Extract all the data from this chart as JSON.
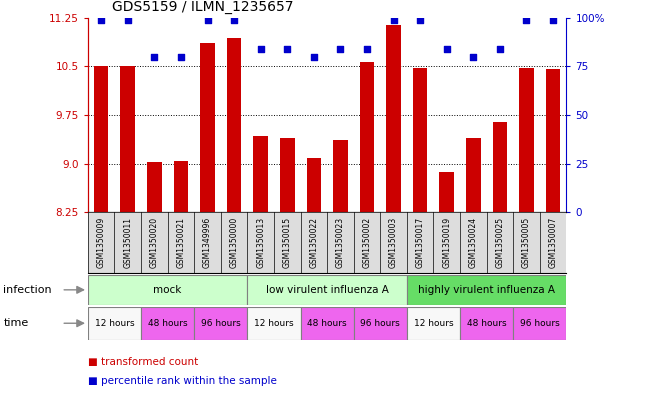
{
  "title": "GDS5159 / ILMN_1235657",
  "samples": [
    "GSM1350009",
    "GSM1350011",
    "GSM1350020",
    "GSM1350021",
    "GSM1349996",
    "GSM1350000",
    "GSM1350013",
    "GSM1350015",
    "GSM1350022",
    "GSM1350023",
    "GSM1350002",
    "GSM1350003",
    "GSM1350017",
    "GSM1350019",
    "GSM1350024",
    "GSM1350025",
    "GSM1350005",
    "GSM1350007"
  ],
  "bar_values": [
    10.51,
    10.51,
    9.03,
    9.04,
    10.86,
    10.93,
    9.42,
    9.39,
    9.08,
    9.37,
    10.57,
    11.13,
    10.47,
    8.87,
    9.4,
    9.64,
    10.47,
    10.46
  ],
  "dot_values": [
    99,
    99,
    80,
    80,
    99,
    99,
    84,
    84,
    80,
    84,
    84,
    99,
    99,
    84,
    80,
    84,
    99,
    99
  ],
  "ymin": 8.25,
  "ymax": 11.25,
  "yticks": [
    8.25,
    9.0,
    9.75,
    10.5,
    11.25
  ],
  "right_yticks": [
    0,
    25,
    50,
    75,
    100
  ],
  "right_yticklabels": [
    "0",
    "25",
    "50",
    "75",
    "100%"
  ],
  "bar_color": "#cc0000",
  "dot_color": "#0000cc",
  "infection_group_labels": [
    "mock",
    "low virulent influenza A",
    "highly virulent influenza A"
  ],
  "infection_group_starts": [
    0,
    6,
    12
  ],
  "infection_group_ends": [
    6,
    12,
    18
  ],
  "infection_group_colors": [
    "#ccffcc",
    "#ccffcc",
    "#66dd66"
  ],
  "time_group_labels": [
    "12 hours",
    "48 hours",
    "96 hours",
    "12 hours",
    "48 hours",
    "96 hours",
    "12 hours",
    "48 hours",
    "96 hours"
  ],
  "time_group_starts": [
    0,
    2,
    4,
    6,
    8,
    10,
    12,
    14,
    16
  ],
  "time_group_ends": [
    2,
    4,
    6,
    8,
    10,
    12,
    14,
    16,
    18
  ],
  "time_group_colors": [
    "#f8f8f8",
    "#ee66ee",
    "#ee66ee",
    "#f8f8f8",
    "#ee66ee",
    "#ee66ee",
    "#f8f8f8",
    "#ee66ee",
    "#ee66ee"
  ],
  "legend_bar_label": "transformed count",
  "legend_dot_label": "percentile rank within the sample"
}
